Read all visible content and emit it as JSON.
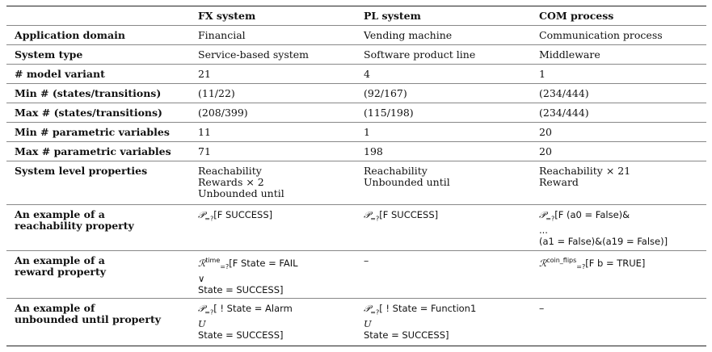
{
  "headers": [
    "",
    "FX system",
    "PL system",
    "COM process"
  ],
  "rows": [
    {
      "label": "Application domain",
      "cells": [
        "Financial",
        "Vending machine",
        "Communication process"
      ]
    },
    {
      "label": "System type",
      "cells": [
        "Service-based system",
        "Software product line",
        "Middleware"
      ]
    },
    {
      "label": "# model variant",
      "cells": [
        "21",
        "4",
        "1"
      ]
    },
    {
      "label": "Min # (states/transitions)",
      "cells": [
        "(11/22)",
        "(92/167)",
        "(234/444)"
      ]
    },
    {
      "label": "Max # (states/transitions)",
      "cells": [
        "(208/399)",
        "(115/198)",
        "(234/444)"
      ]
    },
    {
      "label": "Min # parametric variables",
      "cells": [
        "11",
        "1",
        "20"
      ]
    },
    {
      "label": "Max # parametric variables",
      "cells": [
        "71",
        "198",
        "20"
      ]
    }
  ],
  "system_level": {
    "label": "System level properties",
    "cells": [
      [
        "Reachability",
        "Rewards × 2",
        "Unbounded until"
      ],
      [
        "Reachability",
        "Unbounded until"
      ],
      [
        "Reachability × 21",
        "Reward"
      ]
    ]
  },
  "reach": {
    "label1": "An example of a",
    "label2": "reachability property",
    "P": "𝒫",
    "sub": "=?",
    "fx": "[F SUCCESS]",
    "pl": "[F SUCCESS]",
    "com1": "[F (a0 = False)&",
    "com2": "...",
    "com3": "(a1 = False)&(a19 = False)]"
  },
  "reward": {
    "label1": "An example of a",
    "label2": "reward property",
    "R": "ℛ",
    "sub": "=?",
    "fx_sup": "time",
    "fx1": "[F State = FAIL",
    "fx2": "∨",
    "fx3": "State = SUCCESS]",
    "pl": "–",
    "com_sup": "coin_flips",
    "com": "[F b = TRUE]"
  },
  "until": {
    "label1": "An example of",
    "label2": "unbounded until property",
    "P": "𝒫",
    "sub": "=?",
    "fx1": "[ ! State = Alarm",
    "fx2": "U",
    "fx3": "State = SUCCESS]",
    "pl1": "[ ! State = Function1",
    "pl2": "U",
    "pl3": "State = SUCCESS]",
    "com": "–"
  }
}
